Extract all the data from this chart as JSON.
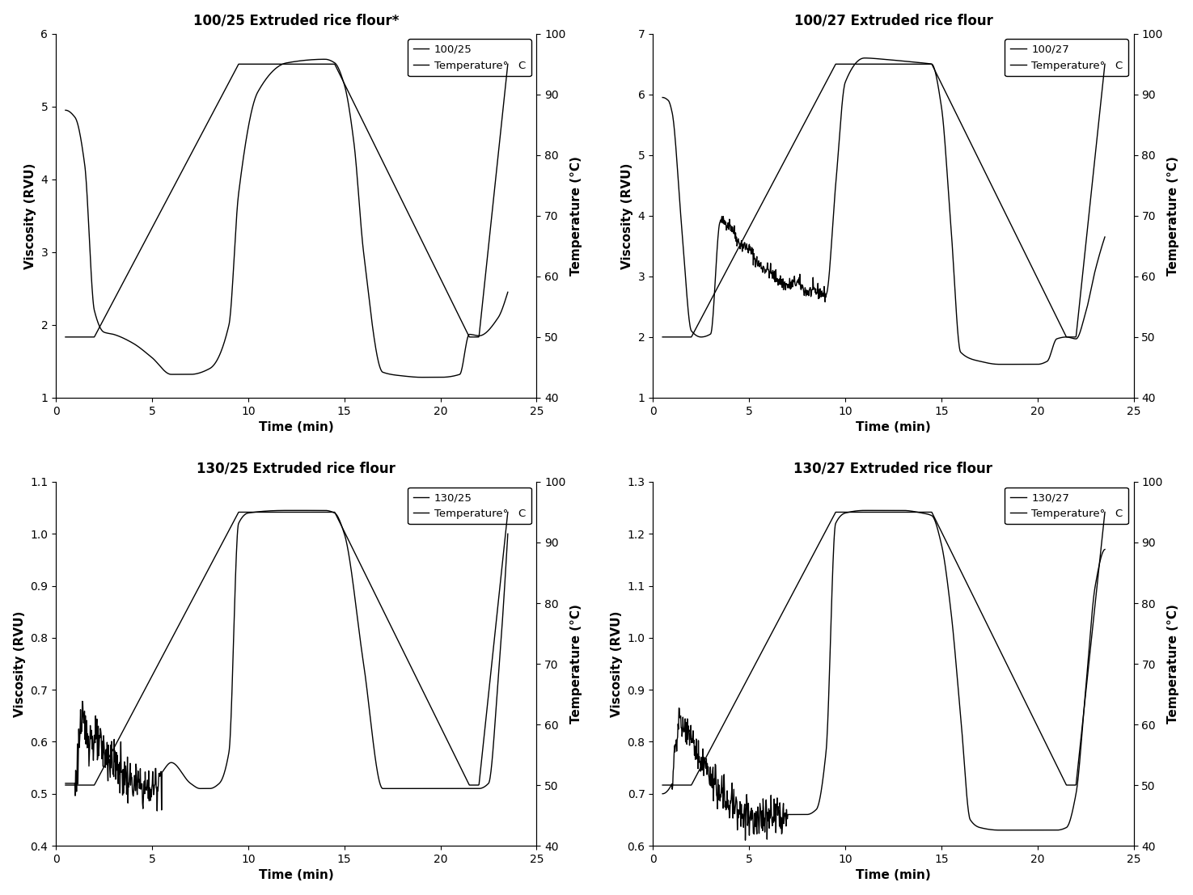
{
  "plots": [
    {
      "title": "100/25 Extruded rice flour*",
      "legend_visc": "100/25",
      "legend_temp": "Temperature°   C",
      "ylim": [
        1,
        6
      ],
      "yticks": [
        1,
        2,
        3,
        4,
        5,
        6
      ],
      "ylabel": "Viscosity (RVU)",
      "right_ylim": [
        40,
        100
      ],
      "right_yticks": [
        40,
        50,
        60,
        70,
        80,
        90,
        100
      ]
    },
    {
      "title": "100/27 Extruded rice flour",
      "legend_visc": "100/27",
      "legend_temp": "Temperature°   C",
      "ylim": [
        1,
        7
      ],
      "yticks": [
        1,
        2,
        3,
        4,
        5,
        6,
        7
      ],
      "ylabel": "Viscosity (RVU)",
      "right_ylim": [
        40,
        100
      ],
      "right_yticks": [
        40,
        50,
        60,
        70,
        80,
        90,
        100
      ]
    },
    {
      "title": "130/25 Extruded rice flour",
      "legend_visc": "130/25",
      "legend_temp": "Temperature°   C",
      "ylim": [
        0.4,
        1.1
      ],
      "yticks": [
        0.4,
        0.5,
        0.6,
        0.7,
        0.8,
        0.9,
        1.0,
        1.1
      ],
      "ylabel": "Viscosity (RVU)",
      "right_ylim": [
        40,
        100
      ],
      "right_yticks": [
        40,
        50,
        60,
        70,
        80,
        90,
        100
      ]
    },
    {
      "title": "130/27 Extruded rice flour",
      "legend_visc": "130/27",
      "legend_temp": "Temperature°   C",
      "ylim": [
        0.6,
        1.3
      ],
      "yticks": [
        0.6,
        0.7,
        0.8,
        0.9,
        1.0,
        1.1,
        1.2,
        1.3
      ],
      "ylabel": "Viscosity (RVU)",
      "right_ylim": [
        40,
        100
      ],
      "right_yticks": [
        40,
        50,
        60,
        70,
        80,
        90,
        100
      ]
    }
  ],
  "xlim": [
    0,
    25
  ],
  "xticks": [
    0,
    5,
    10,
    15,
    20,
    25
  ],
  "xlabel": "Time (min)",
  "line_color": "#000000",
  "background_color": "#ffffff",
  "title_fontsize": 12,
  "axis_label_fontsize": 11,
  "tick_fontsize": 10,
  "legend_fontsize": 9.5
}
